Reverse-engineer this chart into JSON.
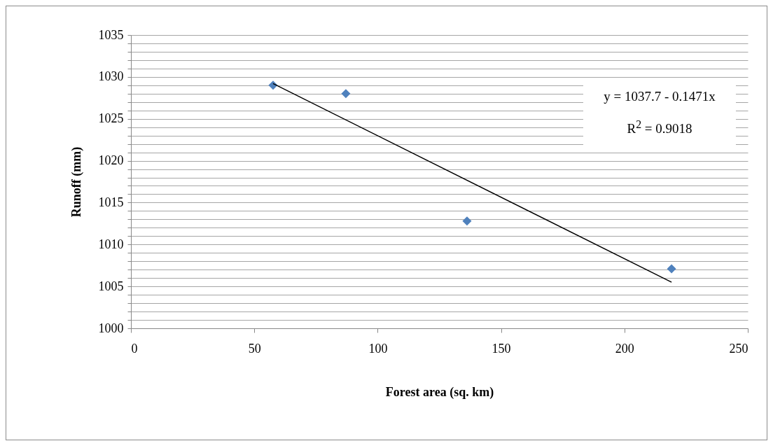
{
  "chart_data": {
    "type": "scatter",
    "xlabel": "Forest area (sq. km)",
    "ylabel": "Runoff (mm)",
    "annotations": [
      "y = 1037.7 - 0.1471x",
      "R$^{2}$ = 0.9018"
    ],
    "xlim": [
      0,
      250
    ],
    "xticks": [
      0,
      50,
      100,
      150,
      200,
      250
    ],
    "ylim": [
      1000,
      1035
    ],
    "yticks": [
      1000,
      {
        "value": 1001,
        "label": null
      },
      {
        "value": 1002,
        "label": null
      },
      {
        "value": 1003,
        "label": null
      },
      {
        "value": 1004,
        "label": null
      },
      1005,
      {
        "value": 1006,
        "label": null
      },
      {
        "value": 1007,
        "label": null
      },
      {
        "value": 1008,
        "label": null
      },
      {
        "value": 1009,
        "label": null
      },
      1010,
      {
        "value": 1011,
        "label": null
      },
      {
        "value": 1012,
        "label": null
      },
      {
        "value": 1013,
        "label": null
      },
      {
        "value": 1014,
        "label": null
      },
      1015,
      {
        "value": 1016,
        "label": null
      },
      {
        "value": 1017,
        "label": null
      },
      {
        "value": 1018,
        "label": null
      },
      {
        "value": 1019,
        "label": null
      },
      1020,
      {
        "value": 1021,
        "label": null
      },
      {
        "value": 1022,
        "label": null
      },
      {
        "value": 1023,
        "label": null
      },
      {
        "value": 1024,
        "label": null
      },
      1025,
      {
        "value": 1026,
        "label": null
      },
      {
        "value": 1027,
        "label": null
      },
      {
        "value": 1028,
        "label": null
      },
      {
        "value": 1029,
        "label": null
      },
      1030,
      {
        "value": 1031,
        "label": null
      },
      {
        "value": 1032,
        "label": null
      },
      {
        "value": 1033,
        "label": null
      },
      {
        "value": 1034,
        "label": null
      },
      1035
    ],
    "grid": "y",
    "marker": "diamond",
    "series": [
      {
        "color": "#4f81bd",
        "x": [
          57.6,
          87.1,
          136.2,
          219.1
        ],
        "values": [
          1029.0,
          1028.0,
          1012.8,
          1007.1
        ]
      },
      {
        "type": "line",
        "color": "#000000",
        "marker": "none",
        "x": [
          57.6,
          219.1
        ],
        "values": [
          1029.2,
          1005.5
        ]
      }
    ]
  }
}
